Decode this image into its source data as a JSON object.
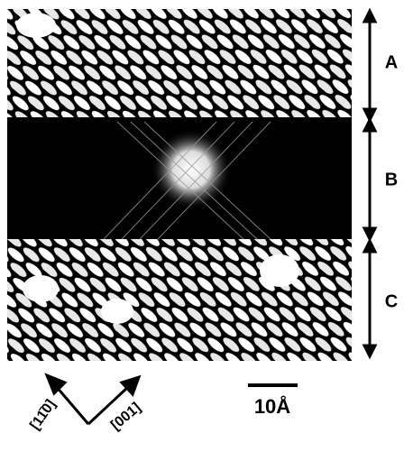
{
  "regions": [
    "A",
    "B",
    "C"
  ],
  "directions": [
    "[11̄0]",
    "[001]"
  ],
  "scale_label": "10Å"
}
